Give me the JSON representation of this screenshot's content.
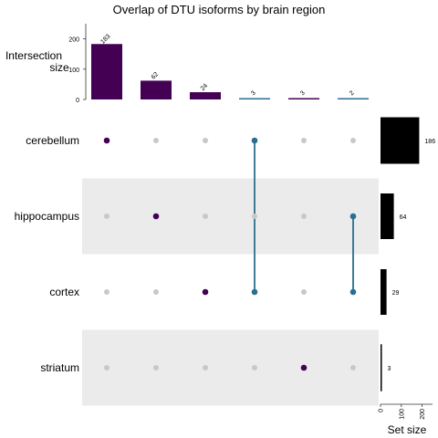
{
  "chart_data": {
    "type": "bar",
    "title": "Overlap of DTU isoforms by brain region",
    "intersection_axis_label": [
      "Intersection",
      "size"
    ],
    "set_axis_label": "Set size",
    "intersection_ylim": [
      0,
      250
    ],
    "intersection_yticks": [
      "0",
      "100",
      "200"
    ],
    "set_xlim": [
      0,
      250
    ],
    "set_xticks": [
      "0",
      "100",
      "200"
    ],
    "sets": [
      {
        "name": "cerebellum",
        "size": 186
      },
      {
        "name": "hippocampus",
        "size": 64
      },
      {
        "name": "cortex",
        "size": 29
      },
      {
        "name": "striatum",
        "size": 3
      }
    ],
    "intersections": [
      {
        "size": 183,
        "label": "183",
        "members": [
          "cerebellum"
        ],
        "color": "#440154"
      },
      {
        "size": 62,
        "label": "62",
        "members": [
          "hippocampus"
        ],
        "color": "#440154"
      },
      {
        "size": 24,
        "label": "24",
        "members": [
          "cortex"
        ],
        "color": "#440154"
      },
      {
        "size": 3,
        "label": "3",
        "members": [
          "cerebellum",
          "cortex"
        ],
        "color": "#2a6f8f"
      },
      {
        "size": 3,
        "label": "3",
        "members": [
          "striatum"
        ],
        "color": "#440154"
      },
      {
        "size": 2,
        "label": "2",
        "members": [
          "hippocampus",
          "cortex"
        ],
        "color": "#2a6f8f"
      }
    ],
    "colors": {
      "single": "#440154",
      "multi": "#2a6f8f",
      "inactive_dot": "#c8c8c8",
      "stripe": "#ebebeb",
      "set_bar": "#000000"
    }
  }
}
